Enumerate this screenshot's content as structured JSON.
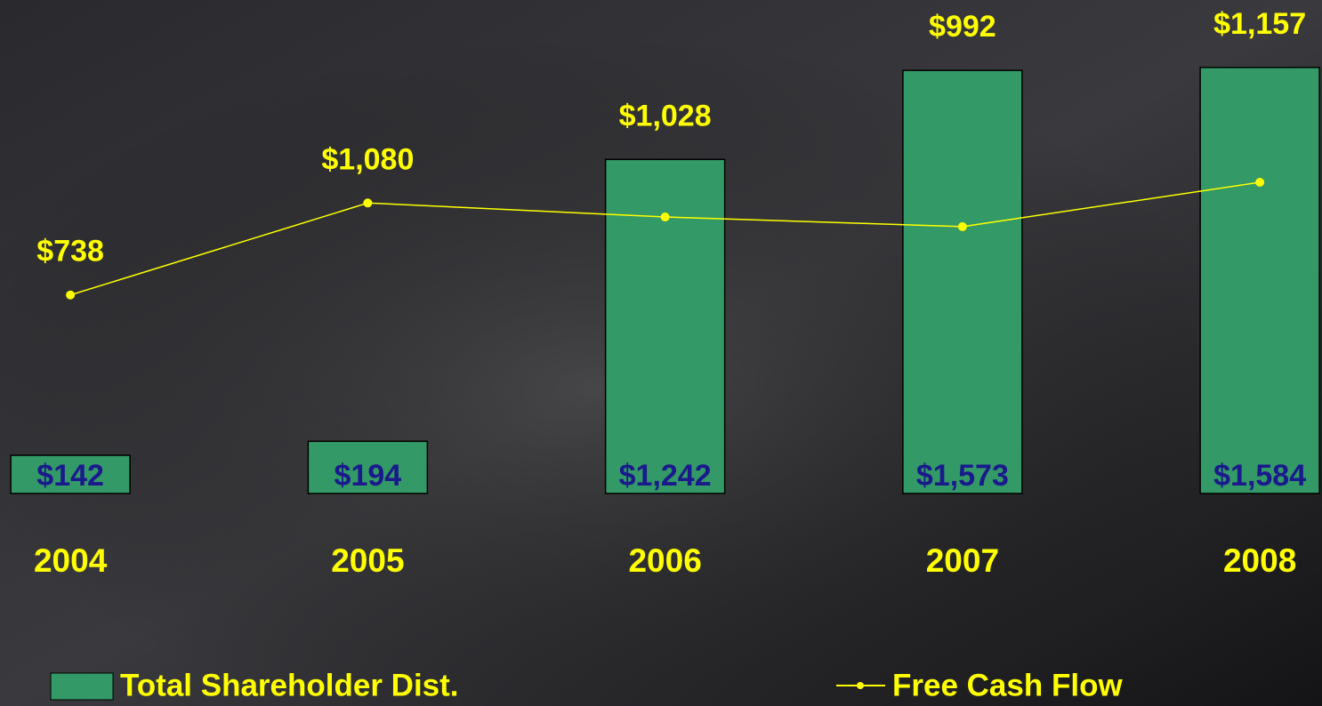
{
  "chart_data": {
    "type": "bar",
    "categories": [
      "2004",
      "2005",
      "2006",
      "2007",
      "2008"
    ],
    "series": [
      {
        "name": "Total Shareholder Dist.",
        "type": "bar",
        "color": "#339966",
        "values": [
          142,
          194,
          1242,
          1573,
          1584
        ],
        "value_labels": [
          "$142",
          "$194",
          "$1,242",
          "$1,573",
          "$1,584"
        ]
      },
      {
        "name": "Free Cash Flow",
        "type": "line",
        "color": "#ffff00",
        "values": [
          738,
          1080,
          1028,
          992,
          1157
        ],
        "value_labels": [
          "$738",
          "$1,080",
          "$1,028",
          "$992",
          "$1,157"
        ]
      }
    ],
    "ylim": [
      0,
      1600
    ]
  }
}
